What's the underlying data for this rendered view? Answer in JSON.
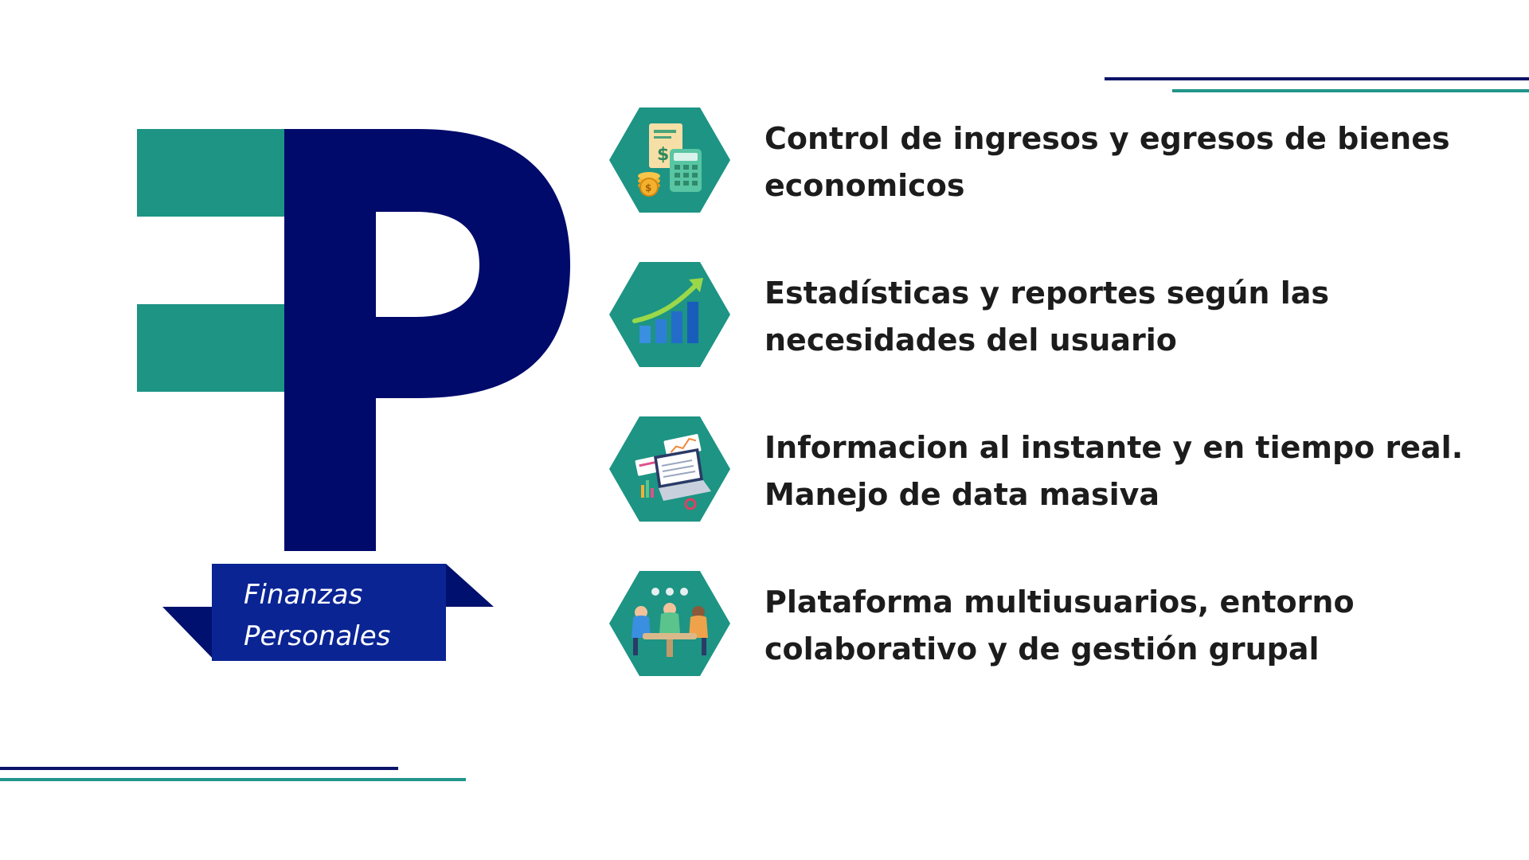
{
  "brand": {
    "ribbon_line1": "Finanzas",
    "ribbon_line2": "Personales",
    "colors": {
      "navy": "#000a6b",
      "teal": "#1d9484",
      "ribbon": "#0a2494",
      "ribbon_dark": "#00106e"
    }
  },
  "features": [
    {
      "icon": "calculator-money-icon",
      "text": "Control de ingresos y egresos de bienes economicos"
    },
    {
      "icon": "growth-chart-icon",
      "text": "Estadísticas y reportes según las necesidades del usuario"
    },
    {
      "icon": "laptop-dashboard-icon",
      "text": "Informacion al instante y en tiempo real. Manejo de data masiva"
    },
    {
      "icon": "team-meeting-icon",
      "text": "Plataforma multiusuarios, entorno colaborativo y de gestión grupal"
    }
  ],
  "decor": {
    "line_navy": "#0b1467",
    "line_teal": "#22958a"
  }
}
